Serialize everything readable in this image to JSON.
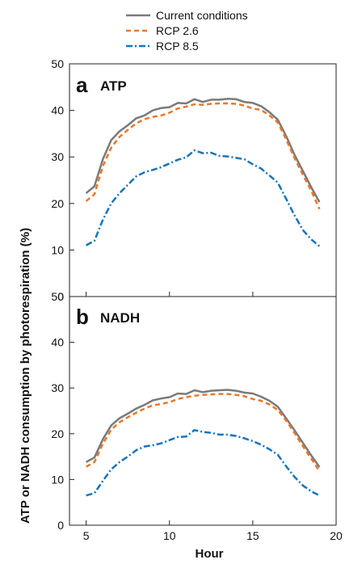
{
  "chart_data": {
    "type": "line",
    "legend": {
      "placement": "top",
      "entries": [
        {
          "label": "Current conditions",
          "color": "#7a7a7a",
          "dash": "solid"
        },
        {
          "label": "RCP 2.6",
          "color": "#e8782a",
          "dash": "dashed"
        },
        {
          "label": "RCP 8.5",
          "color": "#1874b8",
          "dash": "dash-dot"
        }
      ]
    },
    "xlabel": "Hour",
    "ylabel": "ATP or NADH consumption by photorespiration (%)",
    "xlim": [
      4,
      20
    ],
    "ylim": [
      0,
      50
    ],
    "xticks": [
      5,
      10,
      15,
      20
    ],
    "yticks": [
      0,
      10,
      20,
      30,
      40,
      50
    ],
    "grid": false,
    "panels": [
      {
        "letter": "a",
        "name": "ATP",
        "x": [
          5,
          5.5,
          6,
          6.5,
          7,
          7.5,
          8,
          8.5,
          9,
          9.5,
          10,
          10.5,
          11,
          11.5,
          12,
          12.5,
          13,
          13.5,
          14,
          14.5,
          15,
          15.5,
          16,
          16.5,
          17,
          17.5,
          18,
          18.5,
          19
        ],
        "series": [
          {
            "name": "Current conditions",
            "values": [
              22.2,
              23.7,
              29.5,
              33.6,
              35.5,
              36.8,
              38.3,
              38.9,
              40.0,
              40.5,
              40.7,
              41.6,
              41.5,
              42.4,
              41.8,
              42.3,
              42.3,
              42.5,
              42.4,
              41.8,
              41.6,
              40.9,
              39.6,
              38.0,
              34.5,
              30.5,
              27.0,
              23.5,
              20.3
            ]
          },
          {
            "name": "RCP 2.6",
            "values": [
              20.5,
              22.0,
              28.0,
              32.0,
              34.3,
              35.8,
              37.2,
              38.1,
              38.6,
              38.9,
              39.5,
              40.4,
              40.8,
              41.3,
              41.2,
              41.4,
              41.5,
              41.5,
              41.4,
              41.0,
              40.4,
              40.1,
              38.9,
              37.4,
              33.8,
              29.8,
              26.2,
              22.8,
              18.8
            ]
          },
          {
            "name": "RCP 8.5",
            "values": [
              11.0,
              12.0,
              16.5,
              20.0,
              22.2,
              24.0,
              25.8,
              26.7,
              27.2,
              27.8,
              28.6,
              29.4,
              29.9,
              31.4,
              30.8,
              30.9,
              30.2,
              30.1,
              29.8,
              29.5,
              28.4,
              27.5,
              26.0,
              24.5,
              21.0,
              17.5,
              14.3,
              12.3,
              10.8
            ]
          }
        ]
      },
      {
        "letter": "b",
        "name": "NADH",
        "x": [
          5,
          5.5,
          6,
          6.5,
          7,
          7.5,
          8,
          8.5,
          9,
          9.5,
          10,
          10.5,
          11,
          11.5,
          12,
          12.5,
          13,
          13.5,
          14,
          14.5,
          15,
          15.5,
          16,
          16.5,
          17,
          17.5,
          18,
          18.5,
          19
        ],
        "series": [
          {
            "name": "Current conditions",
            "values": [
              13.8,
              14.8,
              18.8,
              21.8,
              23.4,
              24.4,
              25.5,
              26.3,
              27.3,
              27.7,
              28.0,
              28.8,
              28.7,
              29.5,
              29.1,
              29.4,
              29.5,
              29.6,
              29.4,
              29.0,
              28.8,
              28.1,
              27.2,
              25.9,
              23.4,
              20.8,
              18.0,
              15.3,
              12.7
            ]
          },
          {
            "name": "RCP 2.6",
            "values": [
              12.8,
              13.8,
              17.8,
              20.9,
              22.5,
              23.6,
              24.6,
              25.5,
              26.2,
              26.5,
              26.9,
              27.6,
              28.0,
              28.3,
              28.5,
              28.6,
              28.7,
              28.7,
              28.5,
              28.2,
              27.6,
              27.2,
              26.4,
              25.2,
              22.9,
              20.2,
              17.3,
              14.6,
              11.8
            ]
          },
          {
            "name": "RCP 8.5",
            "values": [
              6.5,
              7.0,
              9.7,
              12.2,
              13.8,
              15.0,
              16.4,
              17.2,
              17.5,
              17.9,
              18.6,
              19.3,
              19.4,
              20.8,
              20.4,
              20.2,
              19.8,
              19.8,
              19.5,
              19.0,
              18.4,
              17.6,
              16.6,
              15.4,
              12.9,
              10.6,
              8.7,
              7.4,
              6.5
            ]
          }
        ]
      }
    ]
  }
}
